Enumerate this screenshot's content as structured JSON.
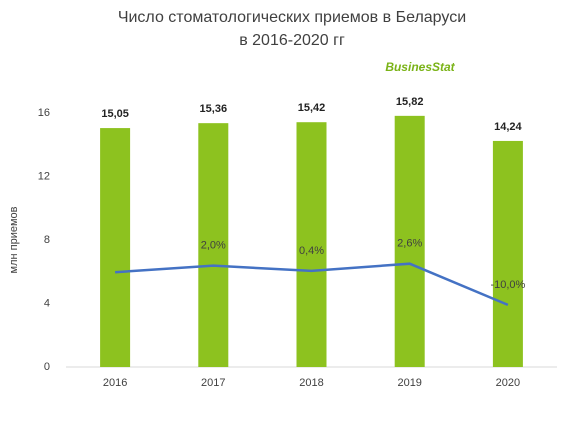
{
  "chart_data": {
    "type": "bar",
    "title": [
      "Число стоматологических приемов в Беларуси",
      "в 2016-2020 гг"
    ],
    "logo": "BusinesStat",
    "y_label": "млн приемов",
    "categories": [
      "2016",
      "2017",
      "2018",
      "2019",
      "2020"
    ],
    "ylim": [
      0,
      16
    ],
    "yticks": [
      0,
      4,
      8,
      12,
      16
    ],
    "y2lim": [
      -29,
      48.7
    ],
    "series": [
      {
        "type": "bar",
        "color": "#8dc21f",
        "values": [
          15.05,
          15.36,
          15.42,
          15.82,
          14.24
        ],
        "value_labels": [
          "15,05",
          "15,36",
          "15,42",
          "15,82",
          "14,24"
        ]
      },
      {
        "type": "line",
        "axis": "y2",
        "color": "#4472c4",
        "values": [
          0,
          2.0,
          0.4,
          2.6,
          -10.0
        ],
        "value_labels": [
          null,
          "2,0%",
          "0,4%",
          "2,6%",
          "-10,0%"
        ]
      }
    ]
  }
}
